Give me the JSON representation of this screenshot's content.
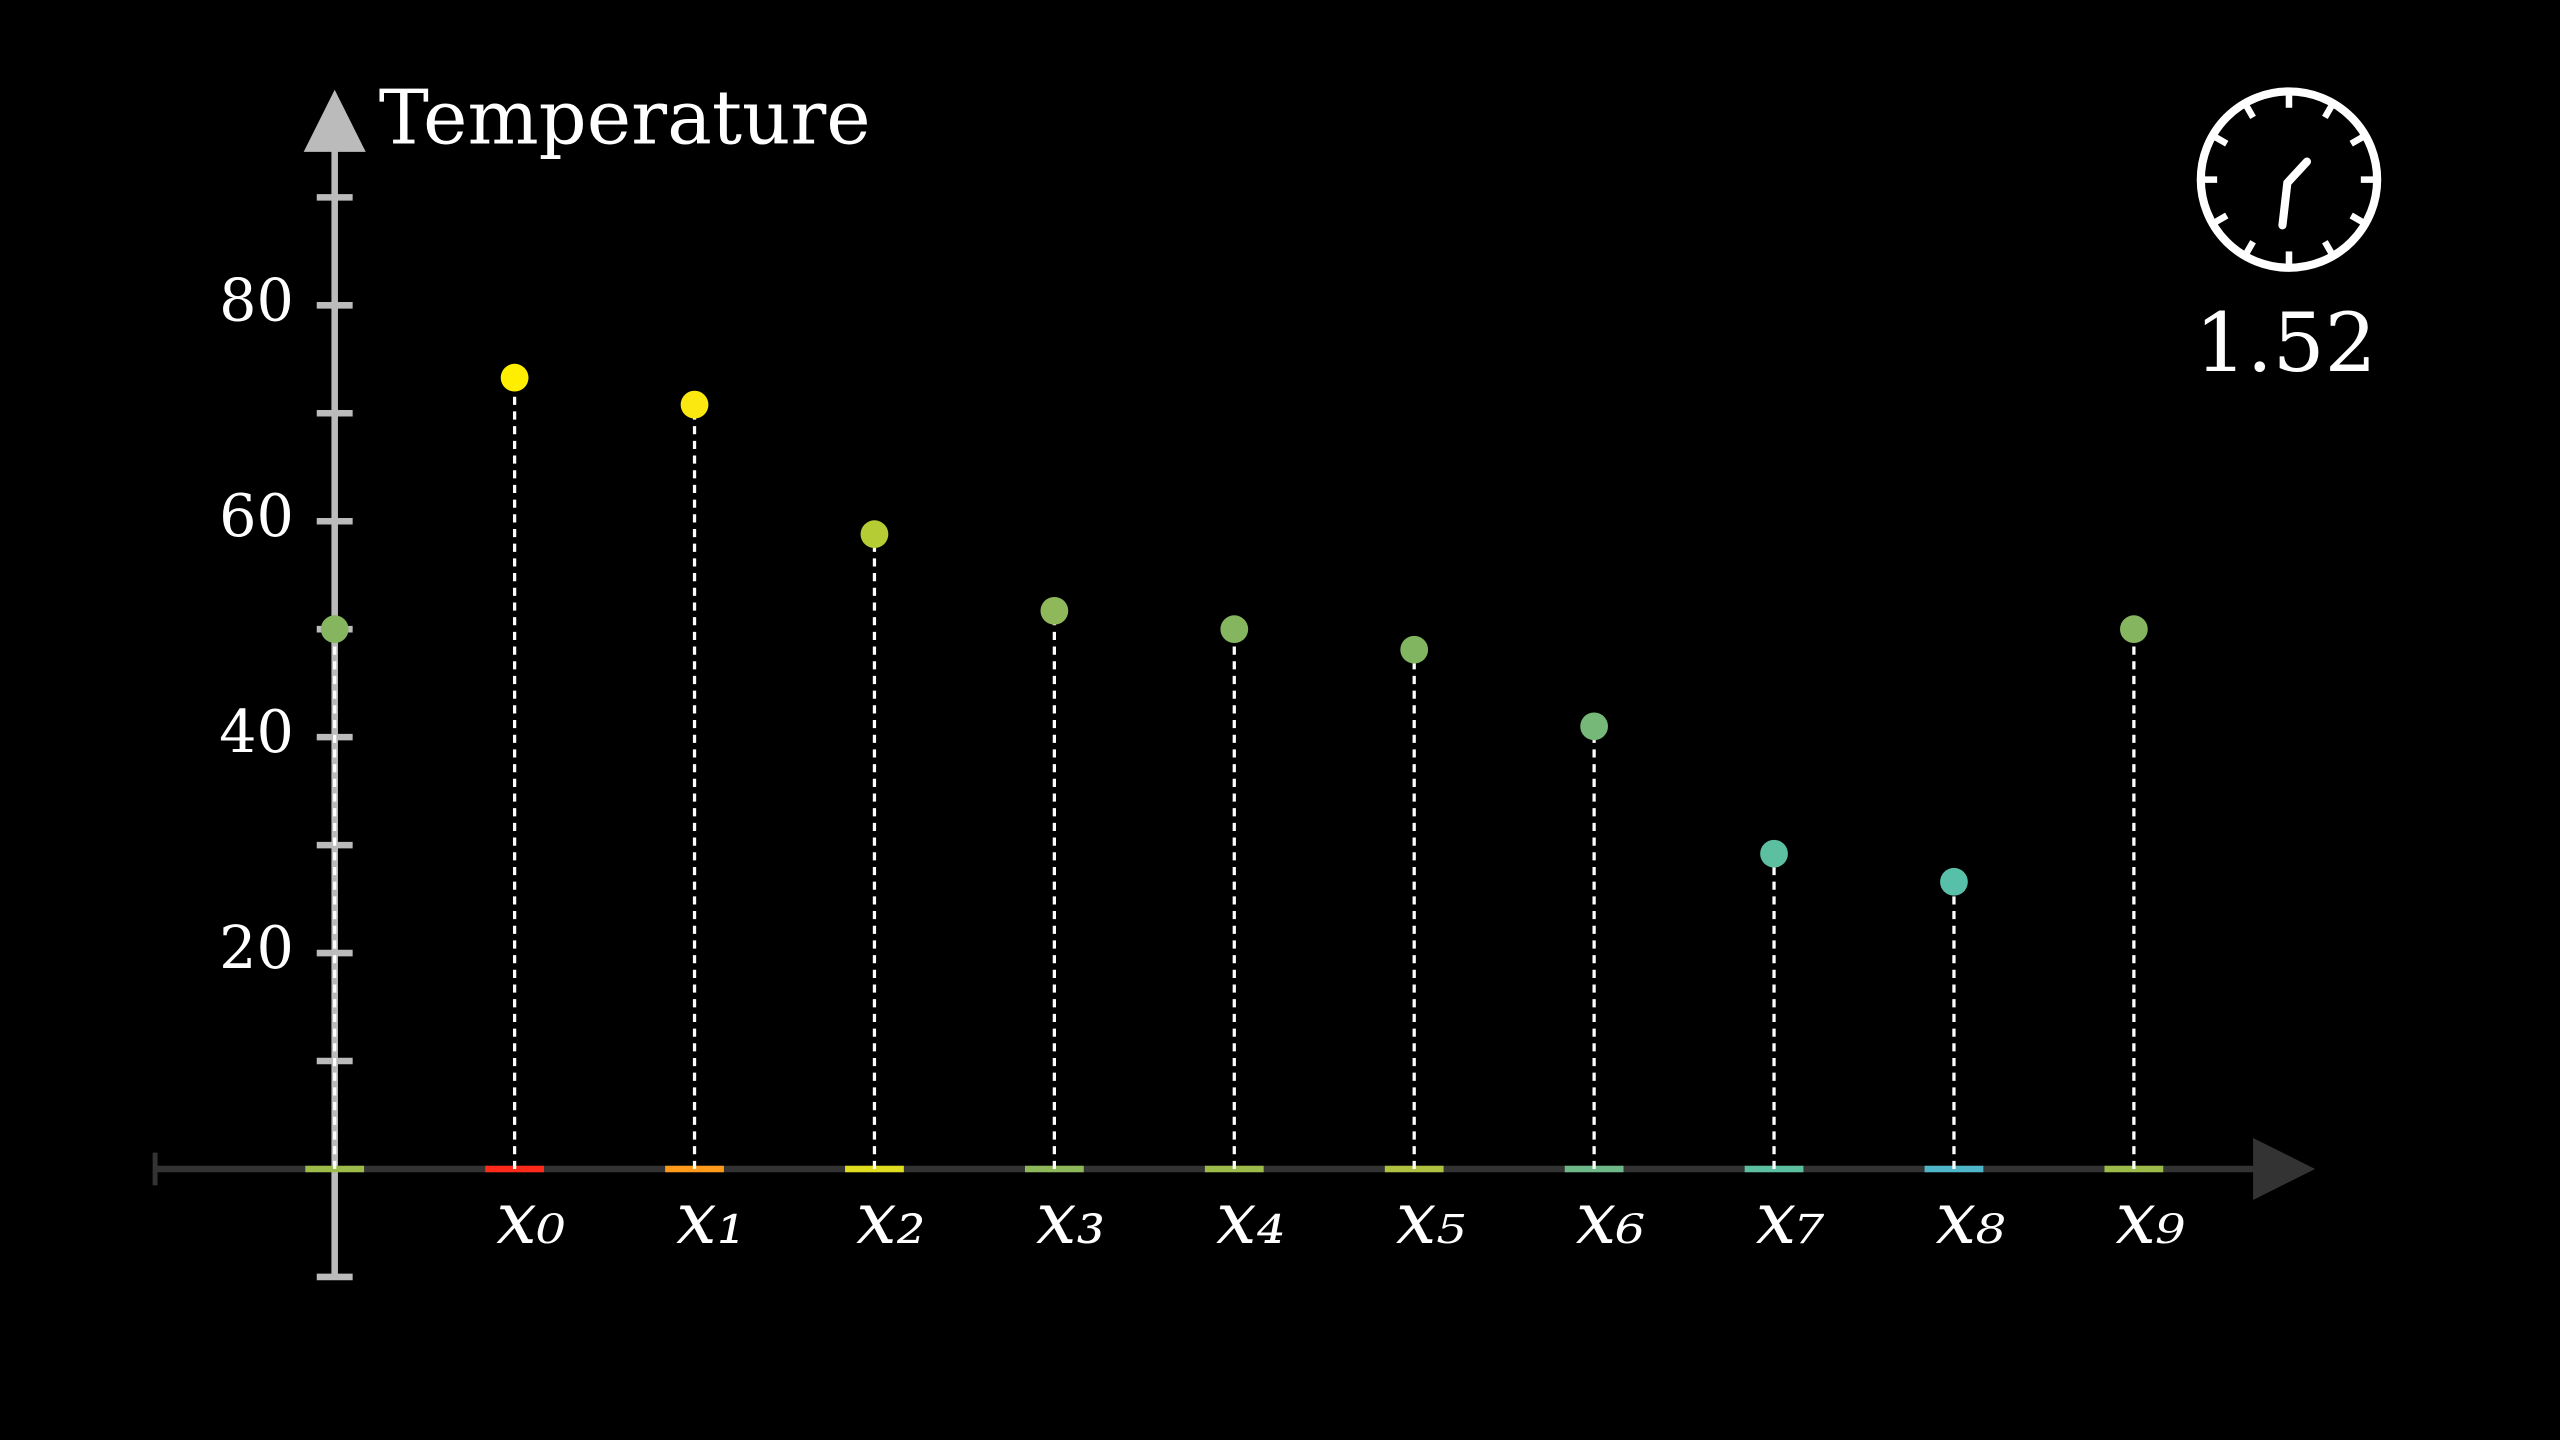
{
  "chart_data": {
    "type": "stem",
    "y_label": "Temperature",
    "categories": [
      null,
      "x₀",
      "x₁",
      "x₂",
      "x₃",
      "x₄",
      "x₅",
      "x₆",
      "x₇",
      "x₈",
      "x₉"
    ],
    "values": [
      50,
      73.3,
      70.8,
      58.8,
      51.7,
      50,
      48.1,
      41,
      29.2,
      26.6,
      50
    ],
    "colors": [
      "#86b55f",
      "#ffee00",
      "#fbe810",
      "#b5cc34",
      "#8fb85a",
      "#86b55f",
      "#82b560",
      "#76b878",
      "#5cbfa0",
      "#58bfa8",
      "#86b55f"
    ],
    "segment_colors": [
      "#9cbb4a",
      "#ff2a1a",
      "#ff9a1a",
      "#e0dc20",
      "#8fb85a",
      "#9cbb4a",
      "#b0c040",
      "#6fb88a",
      "#5cbfa0",
      "#4fb5c8",
      "#9cbb4a"
    ],
    "ylim": [
      -10,
      95
    ],
    "yticks": [
      20,
      40,
      60,
      80
    ],
    "yminorticks": [
      -10,
      10,
      30,
      50,
      70,
      90
    ],
    "clock_time": 1.52
  }
}
